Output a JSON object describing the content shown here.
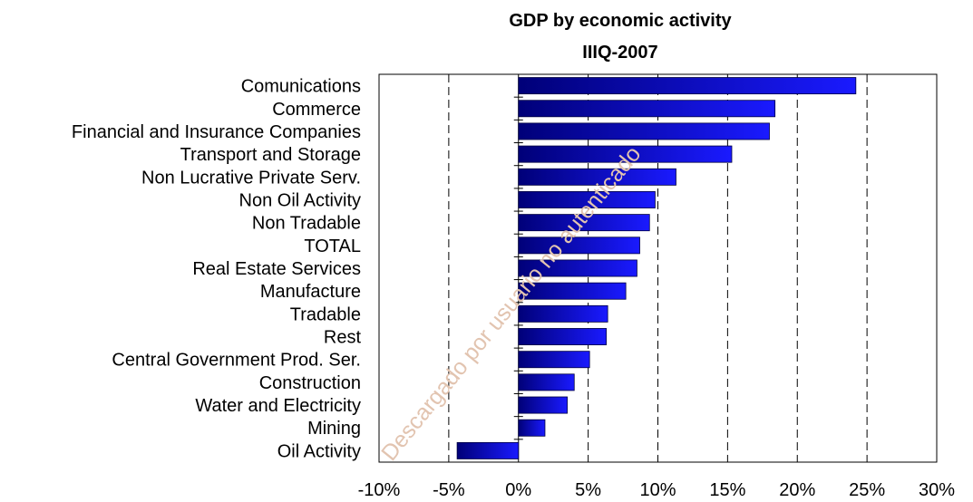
{
  "chart_data": {
    "type": "bar",
    "orientation": "horizontal",
    "title": "GDP by economic activity",
    "subtitle": "IIIQ-2007",
    "categories": [
      "Comunications",
      "Commerce",
      "Financial and Insurance Companies",
      "Transport and Storage",
      "Non Lucrative Private Serv.",
      "Non Oil Activity",
      "Non Tradable",
      "TOTAL",
      "Real Estate Services",
      "Manufacture",
      "Tradable",
      "Rest",
      "Central Government Prod. Ser.",
      "Construction",
      "Water and Electricity",
      "Mining",
      "Oil Activity"
    ],
    "values": [
      24.2,
      18.4,
      18.0,
      15.3,
      11.3,
      9.8,
      9.4,
      8.7,
      8.5,
      7.7,
      6.4,
      6.3,
      5.1,
      4.0,
      3.5,
      1.9,
      -4.4
    ],
    "xlim": [
      -10,
      30
    ],
    "xticks": [
      "-10%",
      "-5%",
      "0%",
      "5%",
      "10%",
      "15%",
      "20%",
      "25%",
      "30%"
    ],
    "grid": "dashed vertical",
    "bar_color": "#0a0acf",
    "bar_color_dark": "#000078"
  },
  "watermark": "Descargado por usuario no autenticado"
}
